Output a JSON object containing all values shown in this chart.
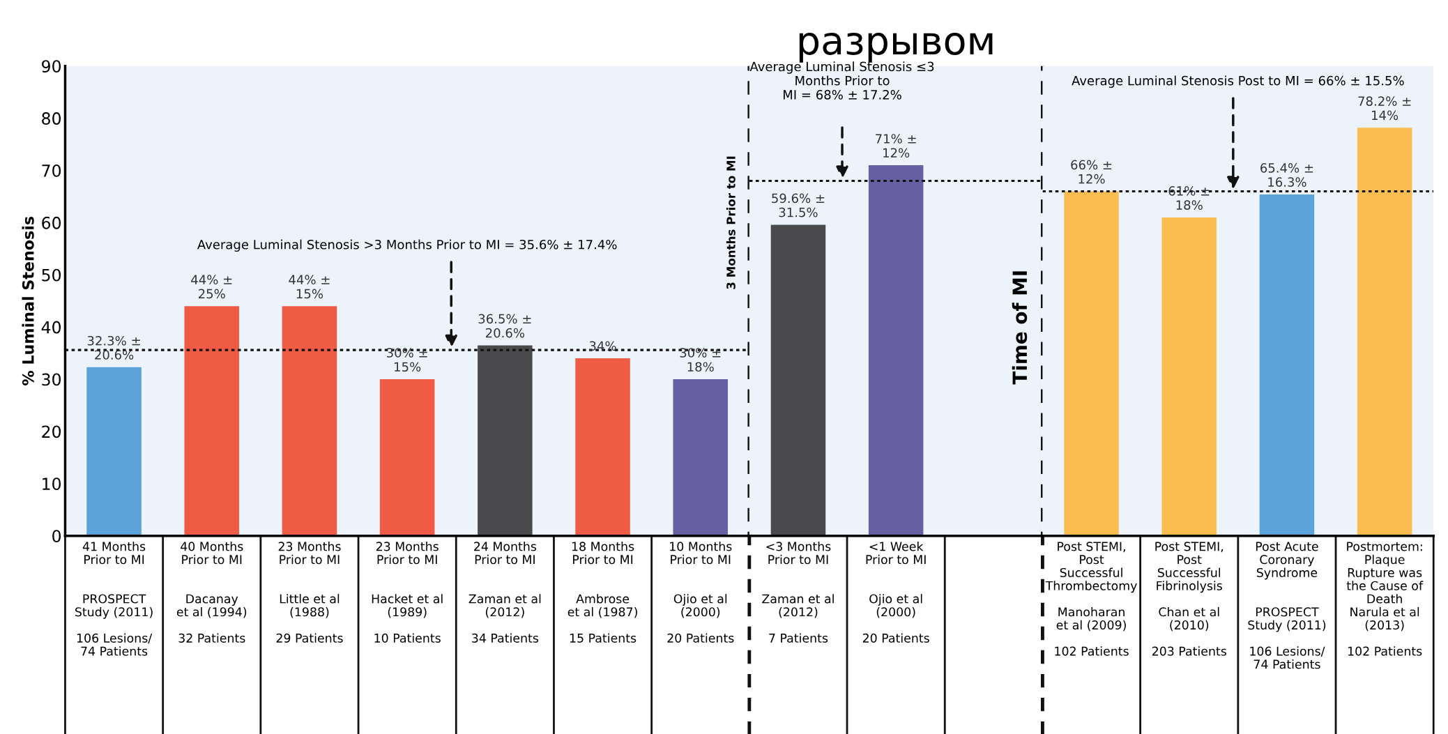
{
  "chart_data": [
    {
      "type": "bar",
      "ylabel": "% Luminal Stenosis",
      "categories": [
        "41 Months\nPrior to MI\n\n\nPROSPECT\nStudy (2011)\n\n106 Lesions/\n74 Patients",
        "40 Months\nPrior to MI\n\n\nDacanay\net al (1994)\n\n32 Patients",
        "23 Months\nPrior to MI\n\n\nLittle et al\n(1988)\n\n29 Patients",
        "23 Months\nPrior to MI\n\n\nHacket et al\n(1989)\n\n10 Patients",
        "24 Months\nPrior to MI\n\n\nZaman et al\n(2012)\n\n34 Patients",
        "18 Months\nPrior to MI\n\n\nAmbrose\net al (1987)\n\n15 Patients",
        "10 Months\nPrior to MI\n\n\nOjio et al\n(2000)\n\n20 Patients"
      ],
      "values": [
        32.3,
        44,
        44,
        30,
        36.5,
        34,
        30
      ],
      "colors": [
        "#5ba3d9",
        "#ef5b44",
        "#ef5b44",
        "#ef5b44",
        "#4a4a4c",
        "#ef5b44",
        "#6660a3"
      ],
      "value_labels": [
        "32.3% ±\n20.6%",
        "44% ±\n25%",
        "44% ±\n15%",
        "30% ±\n15%",
        "36.5% ±\n20.6%",
        "34%",
        "30% ±\n18%"
      ],
      "ylim": [
        0,
        90
      ],
      "yticks": [
        0,
        10,
        20,
        30,
        40,
        50,
        60,
        70,
        80,
        90
      ],
      "ref_lines": [
        {
          "axis": "y",
          "value": 35.6,
          "label": "Average Luminal Stenosis >3 Months Prior to MI = 35.6% ± 17.4%",
          "color": "#111111",
          "line_style": "dotted"
        }
      ],
      "annotations": [
        "3 Months Prior to MI"
      ]
    },
    {
      "type": "bar",
      "title": "разрывом",
      "categories": [
        "<3 Months\nPrior to MI\n\n\nZaman et al\n(2012)\n\n7 Patients",
        "<1 Week\nPrior to MI\n\n\nOjio et al\n(2000)\n\n20 Patients"
      ],
      "values": [
        59.6,
        71
      ],
      "colors": [
        "#4a4a4c",
        "#6660a3"
      ],
      "value_labels": [
        "59.6% ±\n31.5%",
        "71% ±\n12%"
      ],
      "ylim": [
        0,
        90
      ],
      "yticks": [
        0,
        10,
        20,
        30,
        40,
        50,
        60,
        70,
        80,
        90
      ],
      "tick_labels": "x",
      "ref_lines": [
        {
          "axis": "y",
          "value": 68,
          "label": "Average Luminal Stenosis ≤3\nMonths Prior to\nMI = 68% ± 17.2%",
          "color": "#111111",
          "line_style": "dotted"
        }
      ],
      "annotations": [
        "Time of MI"
      ]
    },
    {
      "type": "bar",
      "categories": [
        "Post STEMI,\nPost\nSuccessful\nThrombectomy\n\nManoharan\net al (2009)\n\n102 Patients",
        "Post STEMI,\nPost\nSuccessful\nFibrinolysis\n\nChan et al\n(2010)\n\n203 Patients",
        "Post Acute\nCoronary\nSyndrome\n\n\nPROSPECT\nStudy (2011)\n\n106 Lesions/\n74 Patients",
        "Postmortem:\nPlaque\nRupture was\nthe Cause of\nDeath\nNarula et al\n(2013)\n\n102 Patients"
      ],
      "values": [
        66,
        61,
        65.4,
        78.2
      ],
      "colors": [
        "#fbbd50",
        "#fbbd50",
        "#5ba3d9",
        "#fbbd50"
      ],
      "value_labels": [
        "66% ±\n12%",
        "61% ±\n18%",
        "65.4% ±\n16.3%",
        "78.2% ±\n14%"
      ],
      "ylim": [
        0,
        90
      ],
      "yticks": [
        0,
        10,
        20,
        30,
        40,
        50,
        60,
        70,
        80,
        90
      ],
      "tick_labels": "x",
      "ref_lines": [
        {
          "axis": "y",
          "value": 66,
          "label": "Average Luminal Stenosis Post to MI = 66% ± 15.5%",
          "color": "#111111",
          "line_style": "dotted"
        }
      ]
    }
  ]
}
